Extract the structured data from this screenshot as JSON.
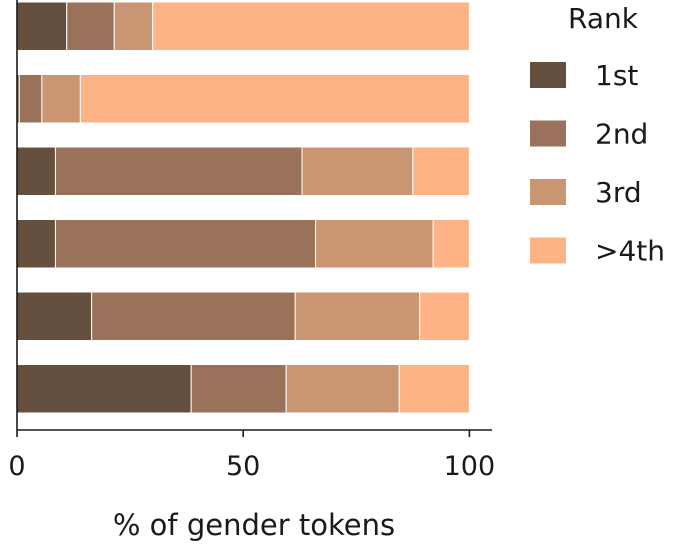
{
  "chart_data": {
    "type": "bar",
    "orientation": "horizontal",
    "stacked": true,
    "xlabel": "% of gender tokens",
    "ylabel": "",
    "xlim": [
      0,
      105
    ],
    "xticks": [
      0,
      50,
      100
    ],
    "grid": false,
    "legend": {
      "title": "Rank",
      "placement": "right"
    },
    "series": [
      {
        "name": "1st",
        "color": "#65503f",
        "values": [
          11,
          0.5,
          8.5,
          8.5,
          16.5,
          38.5
        ]
      },
      {
        "name": "2nd",
        "color": "#9a7159",
        "values": [
          10.5,
          5,
          54.5,
          57.5,
          45,
          21
        ]
      },
      {
        "name": "3rd",
        "color": "#c99573",
        "values": [
          8.5,
          8.5,
          24.5,
          26,
          27.5,
          25
        ]
      },
      {
        "name": ">4th",
        "color": "#fdb385",
        "values": [
          70,
          86,
          12.5,
          8,
          11,
          15.5
        ]
      }
    ]
  }
}
